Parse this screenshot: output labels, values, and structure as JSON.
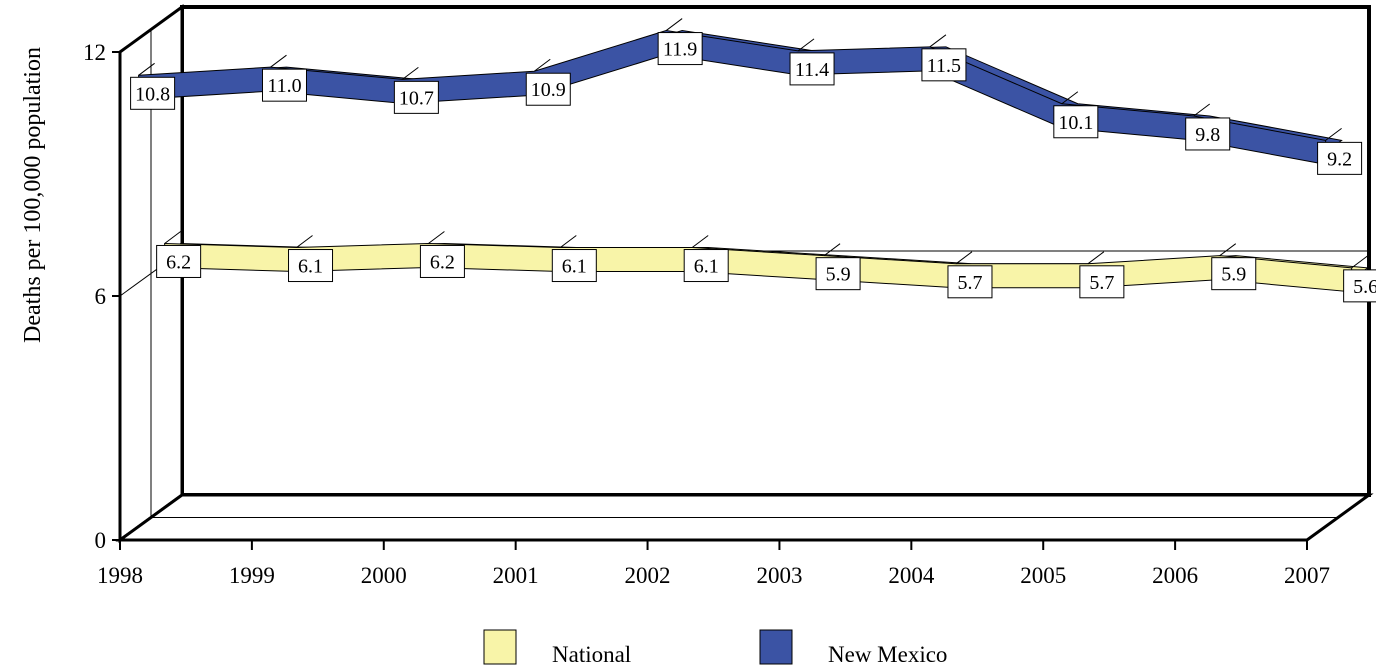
{
  "chart_data": {
    "type": "line",
    "style": "3d-ribbon",
    "categories": [
      "1998",
      "1999",
      "2000",
      "2001",
      "2002",
      "2003",
      "2004",
      "2005",
      "2006",
      "2007"
    ],
    "series": [
      {
        "name": "National",
        "color": "#f8f4a8",
        "values": [
          6.2,
          6.1,
          6.2,
          6.1,
          6.1,
          5.9,
          5.7,
          5.7,
          5.9,
          5.6
        ]
      },
      {
        "name": "New Mexico",
        "color": "#3b53a4",
        "values": [
          10.8,
          11.0,
          10.7,
          10.9,
          11.9,
          11.4,
          11.5,
          10.1,
          9.8,
          9.2
        ]
      }
    ],
    "data_labels": {
      "National": [
        "6.2",
        "6.1",
        "6.2",
        "6.1",
        "6.1",
        "5.9",
        "5.7",
        "5.7",
        "5.9",
        "5.6"
      ],
      "New Mexico": [
        "10.8",
        "11.0",
        "10.7",
        "10.9",
        "11.9",
        "11.4",
        "11.5",
        "10.1",
        "9.8",
        "9.2"
      ]
    },
    "title": "",
    "xlabel": "",
    "ylabel": "Deaths per 100,000 population",
    "ylim": [
      0,
      12
    ],
    "yticks": [
      "0",
      "6",
      "12"
    ],
    "grid": true,
    "legend_position": "bottom"
  }
}
